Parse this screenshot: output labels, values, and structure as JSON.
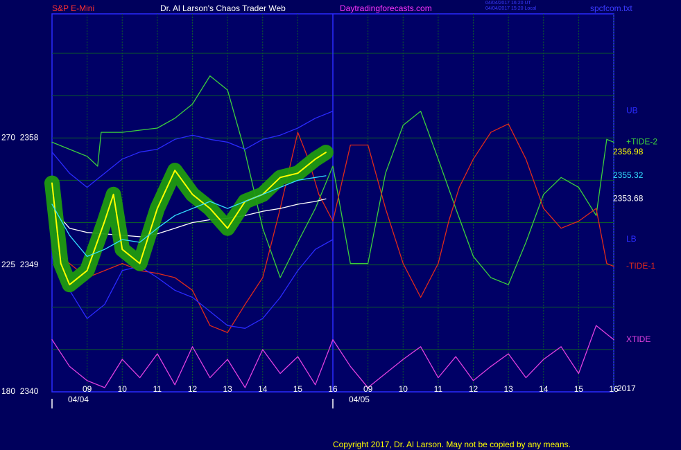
{
  "chart_data": {
    "type": "line",
    "title": "S&P E-Mini",
    "subtitle": "Dr. Al Larson's Chaos Trader Web",
    "website": "Daytradingforecasts.com",
    "timestamps": [
      "04/04/2017 16:20 UT",
      "04/04/2017 15:20 Local"
    ],
    "file": "spcfcom.txt",
    "year": "2017",
    "copyright": "Copyright 2017, Dr. Al Larson. May not be copied by any means.",
    "xlim": [
      0,
      16
    ],
    "ylim": [
      2340,
      2366.8
    ],
    "xticks": [
      {
        "value": 1,
        "label": "09"
      },
      {
        "value": 2,
        "label": "10"
      },
      {
        "value": 3,
        "label": "11"
      },
      {
        "value": 4,
        "label": "12"
      },
      {
        "value": 5,
        "label": "13"
      },
      {
        "value": 6,
        "label": "14"
      },
      {
        "value": 7,
        "label": "15"
      },
      {
        "value": 8,
        "label": "16"
      },
      {
        "value": 9,
        "label": "09"
      },
      {
        "value": 10,
        "label": "10"
      },
      {
        "value": 11,
        "label": "11"
      },
      {
        "value": 12,
        "label": "12"
      },
      {
        "value": 13,
        "label": "13"
      },
      {
        "value": 14,
        "label": "14"
      },
      {
        "value": 15,
        "label": "15"
      },
      {
        "value": 16,
        "label": "16"
      }
    ],
    "yticks": [
      {
        "value": 2358,
        "label": "270  2358"
      },
      {
        "value": 2349,
        "label": "225  2349"
      },
      {
        "value": 2340,
        "label": "180  2340"
      }
    ],
    "ygrid": [
      2343,
      2346,
      2349,
      2352,
      2355,
      2358,
      2361,
      2364
    ],
    "date_labels": [
      {
        "value": 0.75,
        "label": "04/04"
      },
      {
        "value": 8.75,
        "label": "04/05"
      }
    ],
    "day_starts": [
      0,
      8
    ],
    "divider": 8,
    "grid": true,
    "series": [
      {
        "name": "+TIDE-2",
        "color": "#3ccf3c",
        "x": [
          0,
          0.5,
          1,
          1.3,
          1.4,
          2,
          3,
          3.5,
          4,
          4.5,
          5,
          5.5,
          6,
          6.5,
          7,
          7.5,
          8,
          8.5,
          9,
          9.5,
          10,
          10.5,
          11,
          11.5,
          12,
          12.5,
          13,
          13.5,
          14,
          14.5,
          15,
          15.5,
          15.8,
          16
        ],
        "values": [
          2357.7,
          2357.2,
          2356.7,
          2356.0,
          2358.4,
          2358.4,
          2358.7,
          2359.4,
          2360.4,
          2362.4,
          2361.4,
          2357.0,
          2351.6,
          2348.1,
          2350.6,
          2353.0,
          2356.0,
          2349.1,
          2349.1,
          2355.5,
          2358.9,
          2359.9,
          2356.5,
          2353.0,
          2349.6,
          2348.1,
          2347.6,
          2350.6,
          2354.0,
          2355.2,
          2354.5,
          2352.5,
          2357.9,
          2357.7
        ]
      },
      {
        "name": "-TIDE-1",
        "color": "#e02a1a",
        "x": [
          0,
          1,
          2,
          2.5,
          3,
          3.5,
          4,
          4.5,
          5,
          5.5,
          6,
          6.5,
          7,
          7.3,
          7.6,
          8,
          8.5,
          9,
          9.5,
          10,
          10.5,
          11,
          11.3,
          11.6,
          12,
          12.5,
          13,
          13.5,
          14,
          14.5,
          15,
          15.5,
          15.8,
          16
        ],
        "values": [
          2350.1,
          2348.1,
          2349.1,
          2348.6,
          2348.4,
          2348.1,
          2347.2,
          2344.7,
          2344.2,
          2346.2,
          2348.1,
          2353.0,
          2358.4,
          2356.5,
          2354.0,
          2352.1,
          2357.5,
          2357.5,
          2353.0,
          2349.1,
          2346.7,
          2349.1,
          2352.1,
          2354.5,
          2356.5,
          2358.4,
          2359.0,
          2356.5,
          2353.0,
          2351.6,
          2352.1,
          2353.0,
          2349.1,
          2348.9
        ]
      },
      {
        "name": "UB",
        "color": "#2a2aff",
        "x": [
          0,
          0.5,
          1,
          1.5,
          2,
          2.5,
          3,
          3.5,
          4,
          4.5,
          5,
          5.5,
          6,
          6.5,
          7,
          7.5,
          8
        ],
        "values": [
          2357.0,
          2355.5,
          2354.5,
          2355.5,
          2356.5,
          2357.0,
          2357.2,
          2357.9,
          2358.2,
          2357.9,
          2357.7,
          2357.2,
          2357.9,
          2358.2,
          2358.7,
          2359.4,
          2359.9
        ]
      },
      {
        "name": "LB",
        "color": "#2a2aff",
        "x": [
          0,
          0.5,
          1,
          1.5,
          2,
          2.5,
          3,
          3.5,
          4,
          4.5,
          5,
          5.5,
          6,
          6.5,
          7,
          7.5,
          8
        ],
        "values": [
          2349.6,
          2347.2,
          2345.2,
          2346.2,
          2348.6,
          2348.9,
          2348.1,
          2347.2,
          2346.7,
          2345.7,
          2344.7,
          2344.5,
          2345.2,
          2346.7,
          2348.6,
          2350.1,
          2350.8
        ]
      },
      {
        "name": "XTIDE",
        "color": "#e040e0",
        "x": [
          0,
          0.5,
          1,
          1.5,
          2,
          2.5,
          3,
          3.5,
          4,
          4.5,
          5,
          5.5,
          6,
          6.5,
          7,
          7.5,
          8,
          8.5,
          9,
          9.5,
          10,
          10.5,
          11,
          11.5,
          12,
          12.5,
          13,
          13.5,
          14,
          14.5,
          15,
          15.5,
          16
        ],
        "values": [
          2343.7,
          2341.8,
          2340.8,
          2340.3,
          2342.3,
          2341.0,
          2342.7,
          2340.5,
          2343.2,
          2341.0,
          2342.3,
          2340.3,
          2343.0,
          2341.3,
          2342.5,
          2340.5,
          2343.7,
          2341.8,
          2340.3,
          2341.3,
          2342.3,
          2343.2,
          2341.0,
          2342.5,
          2340.8,
          2341.8,
          2342.7,
          2341.0,
          2342.3,
          2343.2,
          2341.3,
          2344.7,
          2343.7
        ]
      },
      {
        "color": "#ffffff",
        "x": [
          0,
          0.5,
          1,
          1.5,
          2,
          2.5,
          3,
          3.5,
          4,
          4.5,
          5,
          5.5,
          6,
          6.5,
          7,
          7.5,
          7.8
        ],
        "values": [
          2353.0,
          2351.6,
          2351.3,
          2351.2,
          2351.1,
          2351.0,
          2351.2,
          2351.6,
          2352.0,
          2352.2,
          2352.3,
          2352.5,
          2352.8,
          2353.0,
          2353.3,
          2353.5,
          2353.68
        ]
      },
      {
        "color": "#ffff00",
        "glow": "#1f9a10",
        "x": [
          0,
          0.25,
          0.5,
          1,
          1.5,
          1.75,
          2,
          2.5,
          3,
          3.5,
          4,
          4.5,
          5,
          5.5,
          6,
          6.5,
          7,
          7.5,
          7.8
        ],
        "values": [
          2354.8,
          2349.1,
          2347.6,
          2348.6,
          2352.1,
          2354.0,
          2350.1,
          2349.1,
          2353.0,
          2355.7,
          2354.0,
          2353.0,
          2351.6,
          2353.5,
          2354.0,
          2355.2,
          2355.5,
          2356.5,
          2356.98
        ]
      },
      {
        "color": "#33ddff",
        "x": [
          0,
          0.5,
          1,
          1.5,
          2,
          2.5,
          3,
          3.5,
          4,
          4.5,
          5,
          5.5,
          6,
          6.5,
          7,
          7.5,
          7.8
        ],
        "values": [
          2353.3,
          2351.1,
          2349.6,
          2350.1,
          2350.8,
          2350.6,
          2351.6,
          2352.5,
          2353.0,
          2353.5,
          2353.0,
          2353.5,
          2354.0,
          2354.5,
          2355.0,
          2355.2,
          2355.32
        ]
      }
    ]
  }
}
